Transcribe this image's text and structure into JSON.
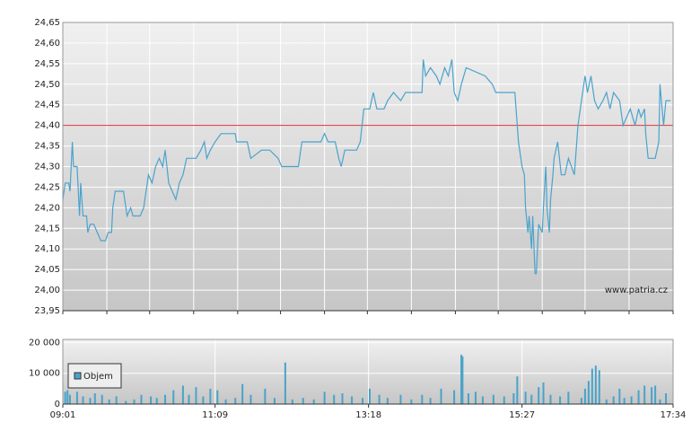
{
  "chart_data": [
    {
      "type": "line",
      "watermark": "www.patria.cz",
      "color": "#4ba3cc",
      "reference_line": 24.4,
      "reference_color": "#e03030",
      "grid": true,
      "xlim": [
        541,
        1054
      ],
      "xticks": [
        541,
        578,
        614,
        651,
        688,
        724,
        761,
        797,
        834,
        871,
        907,
        944,
        980,
        1017,
        1054
      ],
      "ylim": [
        23.95,
        24.65
      ],
      "yticks": [
        {
          "value": 23.95,
          "label": "23,95"
        },
        {
          "value": 24.0,
          "label": "24,00"
        },
        {
          "value": 24.05,
          "label": "24,05"
        },
        {
          "value": 24.1,
          "label": "24,10"
        },
        {
          "value": 24.15,
          "label": "24,15"
        },
        {
          "value": 24.2,
          "label": "24,20"
        },
        {
          "value": 24.25,
          "label": "24,25"
        },
        {
          "value": 24.3,
          "label": "24,30"
        },
        {
          "value": 24.35,
          "label": "24,35"
        },
        {
          "value": 24.4,
          "label": "24,40"
        },
        {
          "value": 24.45,
          "label": "24,45"
        },
        {
          "value": 24.5,
          "label": "24,50"
        },
        {
          "value": 24.55,
          "label": "24,55"
        },
        {
          "value": 24.6,
          "label": "24,60"
        },
        {
          "value": 24.65,
          "label": "24,65"
        }
      ],
      "x": [
        541,
        543,
        546,
        547,
        549,
        550,
        553,
        555,
        556,
        558,
        561,
        562,
        564,
        567,
        570,
        573,
        577,
        579,
        582,
        583,
        585,
        592,
        594,
        595,
        598,
        600,
        606,
        609,
        612,
        613,
        616,
        619,
        622,
        625,
        627,
        630,
        633,
        636,
        639,
        642,
        645,
        653,
        657,
        660,
        662,
        665,
        669,
        674,
        686,
        687,
        696,
        699,
        708,
        715,
        722,
        725,
        739,
        742,
        758,
        761,
        764,
        770,
        773,
        775,
        778,
        788,
        791,
        794,
        799,
        802,
        805,
        811,
        814,
        819,
        825,
        829,
        843,
        844,
        846,
        850,
        855,
        858,
        862,
        865,
        868,
        870,
        873,
        876,
        880,
        896,
        902,
        905,
        921,
        924,
        927,
        929,
        930,
        932,
        933,
        935,
        936,
        938,
        939,
        941,
        944,
        945,
        947,
        948,
        950,
        951,
        953,
        954,
        957,
        960,
        963,
        966,
        971,
        974,
        977,
        980,
        982,
        985,
        988,
        991,
        995,
        998,
        1001,
        1004,
        1009,
        1012,
        1015,
        1018,
        1022,
        1025,
        1027,
        1030,
        1031,
        1033,
        1039,
        1042,
        1043,
        1046,
        1048,
        1052
      ],
      "values": [
        24.22,
        24.26,
        24.26,
        24.24,
        24.36,
        24.3,
        24.3,
        24.18,
        24.26,
        24.18,
        24.18,
        24.14,
        24.16,
        24.16,
        24.14,
        24.12,
        24.12,
        24.14,
        24.14,
        24.2,
        24.24,
        24.24,
        24.2,
        24.18,
        24.2,
        24.18,
        24.18,
        24.2,
        24.26,
        24.28,
        24.26,
        24.3,
        24.32,
        24.3,
        24.34,
        24.26,
        24.24,
        24.22,
        24.26,
        24.28,
        24.32,
        24.32,
        24.34,
        24.36,
        24.32,
        24.34,
        24.36,
        24.38,
        24.38,
        24.36,
        24.36,
        24.32,
        24.34,
        24.34,
        24.32,
        24.3,
        24.3,
        24.36,
        24.36,
        24.38,
        24.36,
        24.36,
        24.32,
        24.3,
        24.34,
        24.34,
        24.36,
        24.44,
        24.44,
        24.48,
        24.44,
        24.44,
        24.46,
        24.48,
        24.46,
        24.48,
        24.48,
        24.56,
        24.52,
        24.54,
        24.52,
        24.5,
        24.54,
        24.52,
        24.56,
        24.48,
        24.46,
        24.5,
        24.54,
        24.52,
        24.5,
        24.48,
        24.48,
        24.36,
        24.3,
        24.28,
        24.2,
        24.14,
        24.18,
        24.1,
        24.18,
        24.04,
        24.04,
        24.16,
        24.14,
        24.2,
        24.3,
        24.2,
        24.14,
        24.22,
        24.28,
        24.32,
        24.36,
        24.28,
        24.28,
        24.32,
        24.28,
        24.4,
        24.46,
        24.52,
        24.48,
        24.52,
        24.46,
        24.44,
        24.46,
        24.48,
        24.44,
        24.48,
        24.46,
        24.4,
        24.42,
        24.44,
        24.4,
        24.44,
        24.42,
        24.44,
        24.38,
        24.32,
        24.32,
        24.36,
        24.5,
        24.4,
        24.46,
        24.46
      ]
    },
    {
      "type": "bar",
      "color": "#4aa3c8",
      "legend": "Objem",
      "grid": true,
      "xlim": [
        541,
        1054
      ],
      "xticks": [
        {
          "value": 541,
          "label": "09:01"
        },
        {
          "value": 669,
          "label": "11:09"
        },
        {
          "value": 798,
          "label": "13:18"
        },
        {
          "value": 927,
          "label": "15:27"
        },
        {
          "value": 1054,
          "label": "17:34"
        }
      ],
      "ylim": [
        0,
        21000
      ],
      "yticks": [
        {
          "value": 0,
          "label": "0"
        },
        {
          "value": 10000,
          "label": "10 000"
        },
        {
          "value": 20000,
          "label": "20 000"
        }
      ],
      "x": [
        543,
        545,
        547,
        553,
        558,
        564,
        568,
        574,
        580,
        586,
        594,
        601,
        607,
        615,
        620,
        627,
        634,
        642,
        647,
        653,
        659,
        665,
        671,
        678,
        686,
        692,
        699,
        711,
        719,
        728,
        734,
        743,
        752,
        761,
        769,
        776,
        784,
        793,
        799,
        807,
        814,
        825,
        834,
        843,
        850,
        859,
        870,
        876,
        877,
        882,
        888,
        894,
        903,
        912,
        920,
        923,
        930,
        935,
        941,
        945,
        951,
        959,
        966,
        977,
        980,
        983,
        986,
        989,
        992,
        998,
        1004,
        1009,
        1013,
        1019,
        1025,
        1030,
        1036,
        1039,
        1043,
        1048
      ],
      "values": [
        4000,
        4500,
        3000,
        4000,
        2500,
        2000,
        3500,
        3000,
        1500,
        2500,
        1000,
        1500,
        3000,
        2500,
        2000,
        3000,
        4500,
        6000,
        3000,
        5500,
        2500,
        5000,
        4500,
        1500,
        2000,
        6500,
        3000,
        5000,
        2000,
        13500,
        1500,
        2000,
        1500,
        4000,
        3000,
        3500,
        2500,
        2000,
        5000,
        3000,
        2000,
        3000,
        1500,
        3000,
        2000,
        5000,
        4500,
        16000,
        15500,
        3500,
        4000,
        2500,
        3000,
        2500,
        3500,
        9000,
        4000,
        3000,
        5500,
        7000,
        3000,
        2500,
        4000,
        2000,
        5000,
        7500,
        11500,
        12500,
        11000,
        1500,
        2500,
        5000,
        2000,
        2500,
        4500,
        6000,
        5500,
        6000,
        1500,
        3500
      ]
    }
  ]
}
